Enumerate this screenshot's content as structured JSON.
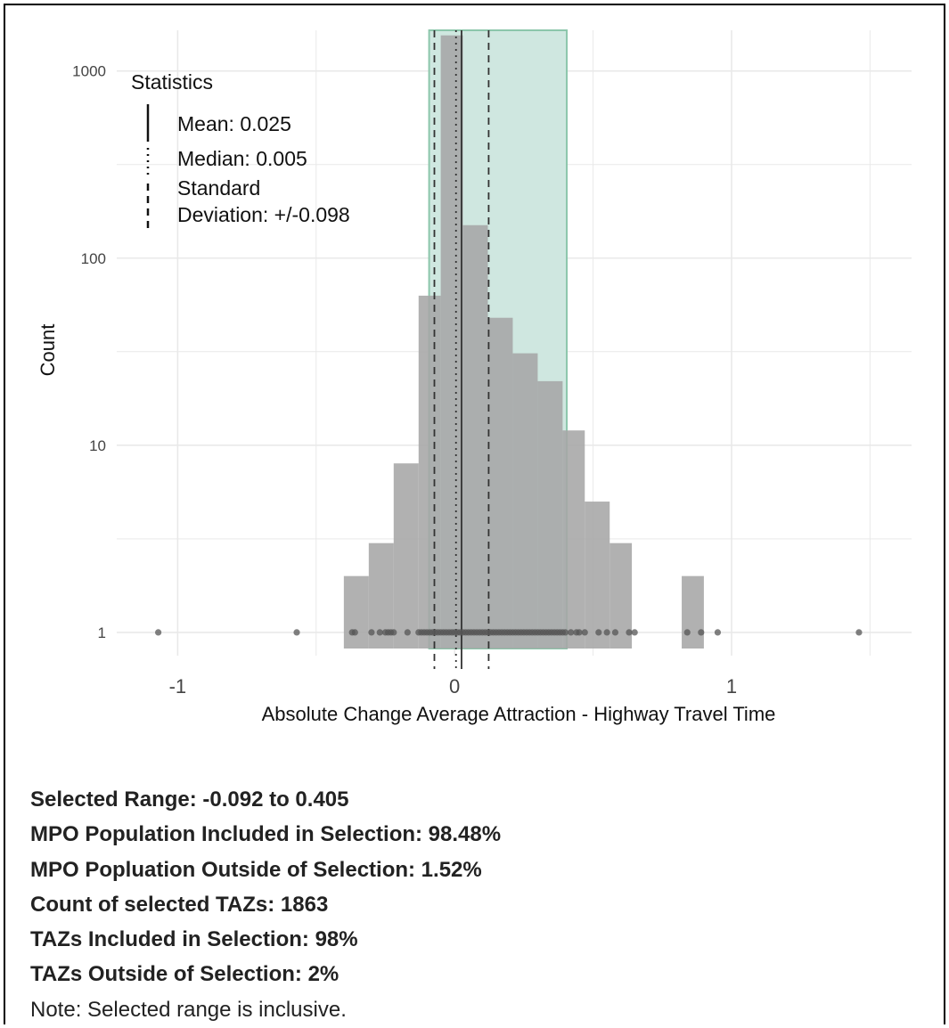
{
  "chart_data": {
    "type": "bar",
    "xlabel": "Absolute Change Average Attraction - Highway Travel Time",
    "ylabel": "Count",
    "y_scale": "log10",
    "xlim": [
      -1.22,
      1.65
    ],
    "ylim": [
      0.82,
      1650
    ],
    "x_ticks": [
      {
        "value": -1,
        "label": "-1"
      },
      {
        "value": 0,
        "label": "0"
      },
      {
        "value": 1,
        "label": "1"
      }
    ],
    "y_ticks": [
      {
        "value": 1,
        "label": "1"
      },
      {
        "value": 10,
        "label": "10"
      },
      {
        "value": 100,
        "label": "100"
      },
      {
        "value": 1000,
        "label": "1000"
      }
    ],
    "grid": true,
    "histogram_bins": [
      {
        "x0": -0.4,
        "x1": -0.31,
        "count": 2
      },
      {
        "x0": -0.31,
        "x1": -0.22,
        "count": 3
      },
      {
        "x0": -0.22,
        "x1": -0.13,
        "count": 8
      },
      {
        "x0": -0.13,
        "x1": -0.05,
        "count": 63
      },
      {
        "x0": -0.05,
        "x1": 0.03,
        "count": 1550
      },
      {
        "x0": 0.03,
        "x1": 0.12,
        "count": 150
      },
      {
        "x0": 0.12,
        "x1": 0.21,
        "count": 48
      },
      {
        "x0": 0.21,
        "x1": 0.3,
        "count": 31
      },
      {
        "x0": 0.3,
        "x1": 0.39,
        "count": 22
      },
      {
        "x0": 0.39,
        "x1": 0.47,
        "count": 12
      },
      {
        "x0": 0.47,
        "x1": 0.56,
        "count": 5
      },
      {
        "x0": 0.56,
        "x1": 0.64,
        "count": 3
      },
      {
        "x0": 0.82,
        "x1": 0.9,
        "count": 2
      }
    ],
    "points_at_count_1": [
      -1.07,
      -0.57,
      -0.37,
      -0.36,
      -0.3,
      -0.27,
      -0.25,
      -0.24,
      -0.23,
      -0.22,
      -0.17,
      -0.13,
      -0.12,
      -0.11,
      -0.1,
      -0.09,
      -0.08,
      -0.07,
      -0.06,
      -0.05,
      -0.04,
      -0.03,
      -0.02,
      -0.01,
      0.0,
      0.01,
      0.02,
      0.03,
      0.04,
      0.05,
      0.06,
      0.07,
      0.08,
      0.09,
      0.1,
      0.11,
      0.12,
      0.13,
      0.14,
      0.15,
      0.16,
      0.17,
      0.18,
      0.19,
      0.2,
      0.21,
      0.22,
      0.23,
      0.24,
      0.25,
      0.26,
      0.27,
      0.28,
      0.29,
      0.3,
      0.31,
      0.32,
      0.33,
      0.34,
      0.35,
      0.36,
      0.37,
      0.38,
      0.39,
      0.4,
      0.42,
      0.44,
      0.45,
      0.47,
      0.52,
      0.55,
      0.58,
      0.63,
      0.65,
      0.84,
      0.89,
      0.95,
      1.46
    ],
    "selected_range": {
      "from": -0.092,
      "to": 0.405
    },
    "mean": 0.025,
    "median": 0.005,
    "sd": 0.098,
    "legend": {
      "title": "Statistics",
      "placement": "top-left",
      "items": [
        {
          "style": "solid",
          "label": "Mean: 0.025"
        },
        {
          "style": "dotted",
          "label": "Median: 0.005"
        },
        {
          "style": "dashed",
          "label_lines": [
            "Standard",
            "Deviation: +/-0.098"
          ]
        }
      ]
    },
    "colors": {
      "bars": "#a6a6a6",
      "selection_fill": "#cfe7e0",
      "selection_stroke": "#8cc6ab",
      "grid": "#e9e9e9",
      "points": "#555555",
      "stat_lines": "#333333"
    }
  },
  "summary": {
    "selected_range": "Selected Range: -0.092 to 0.405",
    "population_included": "MPO Population Included in Selection: 98.48%",
    "population_outside": "MPO Popluation Outside of Selection: 1.52%",
    "count_selected": "Count of selected TAZs: 1863",
    "taz_included": "TAZs Included in Selection: 98%",
    "taz_outside": "TAZs Outside of Selection: 2%",
    "note": "Note: Selected range is inclusive."
  }
}
